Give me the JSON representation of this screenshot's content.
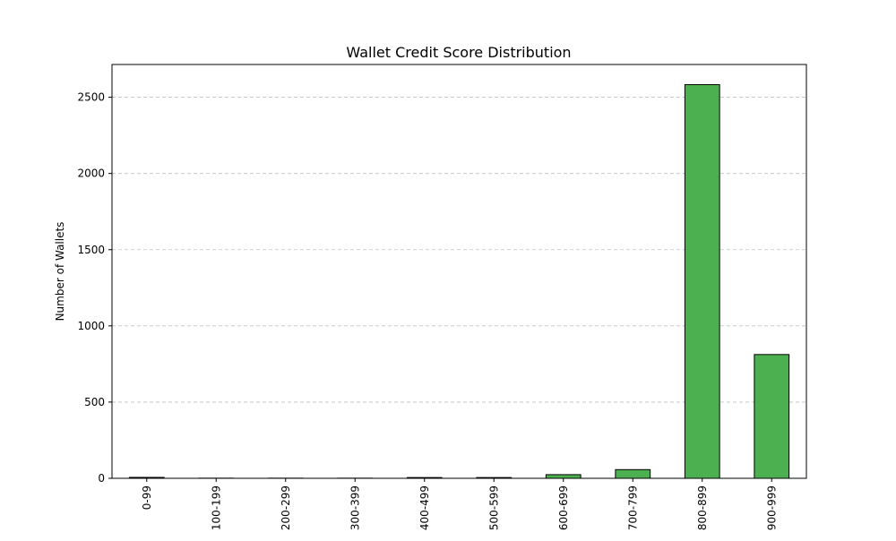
{
  "chart_data": {
    "type": "bar",
    "title": "Wallet Credit Score Distribution",
    "xlabel": "",
    "ylabel": "Number of Wallets",
    "categories": [
      "0-99",
      "100-199",
      "200-299",
      "300-399",
      "400-499",
      "500-599",
      "600-699",
      "700-799",
      "800-899",
      "900-999"
    ],
    "values": [
      6,
      1,
      1,
      1,
      5,
      5,
      24,
      57,
      2583,
      812
    ],
    "ylim": [
      0,
      2715
    ],
    "yticks": [
      0,
      500,
      1000,
      1500,
      2000,
      2500
    ],
    "grid": "y-dashed",
    "bar_color": "#4caf50",
    "bar_edge_color": "#000000"
  }
}
